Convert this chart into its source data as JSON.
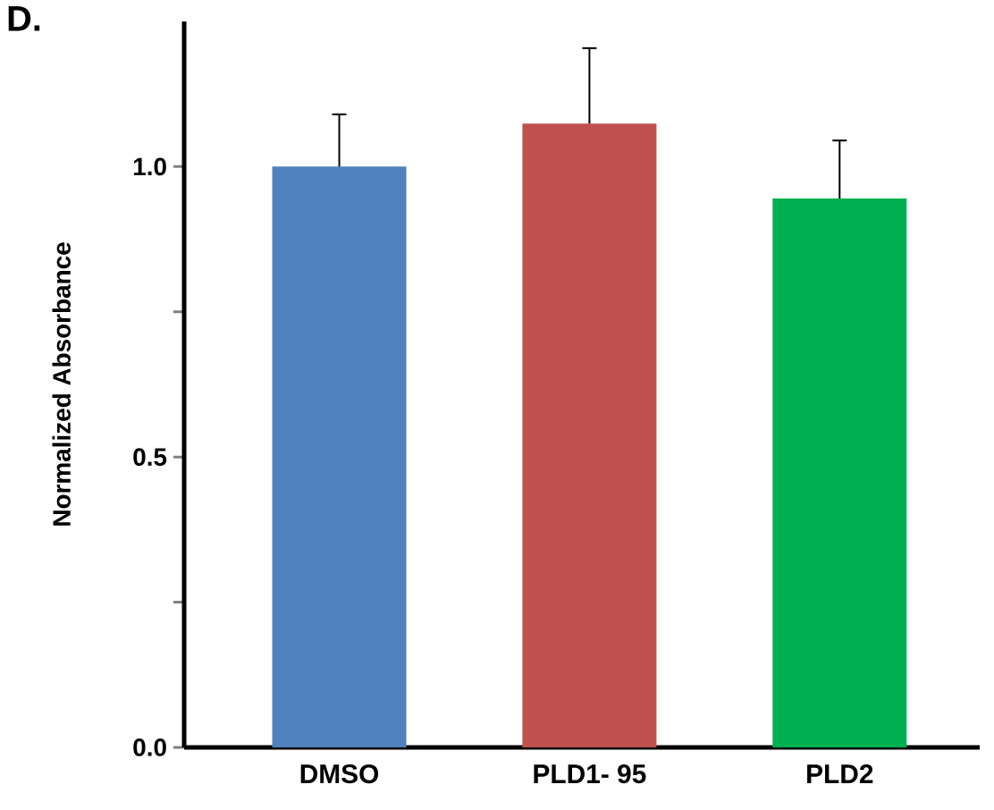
{
  "chart_data": {
    "type": "bar",
    "title": "D.",
    "ylabel": "Normalized Absorbance",
    "categories": [
      "DMSO",
      "PLD1- 95",
      "PLD2"
    ],
    "values": [
      1.0,
      1.074,
      0.945
    ],
    "colors": [
      "#4f81bd",
      "#c0504d",
      "#00b050"
    ],
    "errors": [
      0.09,
      0.13,
      0.1
    ],
    "ylim": [
      0,
      1.25
    ],
    "yticks": [
      {
        "value": 0,
        "label": "0.0"
      },
      {
        "value": 0.25,
        "label": null
      },
      0.5,
      {
        "value": 0.75,
        "label": null
      },
      {
        "value": 1,
        "label": "1.0"
      }
    ],
    "grid": false
  }
}
